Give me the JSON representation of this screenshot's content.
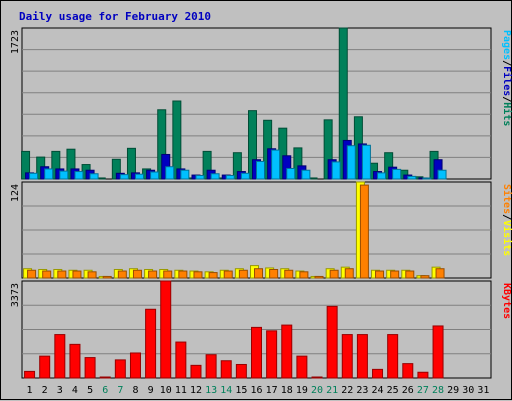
{
  "window": {
    "title": "Daily usage for February 2010"
  },
  "colors": {
    "pages": "#00c0ff",
    "files": "#0000c0",
    "hits": "#00805a",
    "sites": "#ff8000",
    "visits": "#ffff00",
    "kbytes": "#ff0000",
    "weekend_tick": "#00805a",
    "background": "#c0c0c0",
    "plot_bg": "#c0c0c0",
    "title": "#0000c0"
  },
  "chart_data": [
    {
      "type": "bar",
      "name": "hits-files-pages",
      "ymax_label": "1723",
      "ylim": [
        0,
        1723
      ],
      "grid": true,
      "ylabel_parts": [
        {
          "text": "Pages",
          "color_key": "pages"
        },
        {
          "text": "/",
          "color_key": "black"
        },
        {
          "text": "Files",
          "color_key": "files"
        },
        {
          "text": "/",
          "color_key": "black"
        },
        {
          "text": "Hits",
          "color_key": "hits"
        }
      ],
      "categories": [
        "1",
        "2",
        "3",
        "4",
        "5",
        "6",
        "7",
        "8",
        "9",
        "10",
        "11",
        "12",
        "13",
        "14",
        "15",
        "16",
        "17",
        "18",
        "19",
        "20",
        "21",
        "22",
        "23",
        "24",
        "25",
        "26",
        "27",
        "28",
        "29",
        "30",
        "31"
      ],
      "series": [
        {
          "name": "Hits",
          "color_key": "hits",
          "values": [
            315,
            250,
            315,
            340,
            165,
            12,
            225,
            350,
            115,
            790,
            890,
            12,
            315,
            12,
            300,
            780,
            670,
            580,
            355,
            12,
            675,
            1723,
            710,
            180,
            300,
            100,
            25,
            315,
            0,
            0,
            0
          ]
        },
        {
          "name": "Files",
          "color_key": "files",
          "values": [
            70,
            140,
            115,
            115,
            100,
            0,
            65,
            70,
            100,
            280,
            115,
            45,
            100,
            45,
            85,
            220,
            345,
            265,
            150,
            0,
            220,
            440,
            400,
            85,
            135,
            45,
            12,
            220,
            0,
            0,
            0
          ]
        },
        {
          "name": "Pages",
          "color_key": "pages",
          "values": [
            65,
            115,
            90,
            85,
            60,
            0,
            50,
            55,
            80,
            140,
            100,
            40,
            60,
            40,
            65,
            200,
            330,
            120,
            100,
            0,
            195,
            380,
            385,
            70,
            110,
            30,
            10,
            100,
            0,
            0,
            0
          ]
        }
      ]
    },
    {
      "type": "bar",
      "name": "visits-sites",
      "ymax_label": "124",
      "ylim": [
        0,
        124
      ],
      "grid": true,
      "ylabel_parts": [
        {
          "text": "Sites",
          "color_key": "sites"
        },
        {
          "text": "/",
          "color_key": "black"
        },
        {
          "text": "Visits",
          "color_key": "visits"
        }
      ],
      "categories": [
        "1",
        "2",
        "3",
        "4",
        "5",
        "6",
        "7",
        "8",
        "9",
        "10",
        "11",
        "12",
        "13",
        "14",
        "15",
        "16",
        "17",
        "18",
        "19",
        "20",
        "21",
        "22",
        "23",
        "24",
        "25",
        "26",
        "27",
        "28",
        "29",
        "30",
        "31"
      ],
      "series": [
        {
          "name": "Visits",
          "color_key": "visits",
          "values": [
            12,
            11,
            11,
            10,
            10,
            2,
            11,
            12,
            11,
            11,
            10,
            9,
            8,
            10,
            12,
            16,
            13,
            12,
            9,
            2,
            12,
            14,
            124,
            10,
            10,
            10,
            3,
            14,
            0,
            0,
            0
          ]
        },
        {
          "name": "Sites",
          "color_key": "sites",
          "values": [
            10,
            9,
            9,
            9,
            8,
            2,
            9,
            10,
            9,
            9,
            9,
            8,
            7,
            9,
            10,
            12,
            11,
            10,
            8,
            2,
            10,
            12,
            120,
            9,
            9,
            9,
            3,
            12,
            0,
            0,
            0
          ]
        }
      ]
    },
    {
      "type": "bar",
      "name": "kbytes",
      "ymax_label": "3373",
      "ylim": [
        0,
        3373
      ],
      "grid": true,
      "ylabel_parts": [
        {
          "text": "KBytes",
          "color_key": "kbytes"
        }
      ],
      "categories": [
        "1",
        "2",
        "3",
        "4",
        "5",
        "6",
        "7",
        "8",
        "9",
        "10",
        "11",
        "12",
        "13",
        "14",
        "15",
        "16",
        "17",
        "18",
        "19",
        "20",
        "21",
        "22",
        "23",
        "24",
        "25",
        "26",
        "27",
        "28",
        "29",
        "30",
        "31"
      ],
      "series": [
        {
          "name": "KBytes",
          "color_key": "kbytes",
          "values": [
            230,
            760,
            1510,
            1170,
            710,
            20,
            630,
            870,
            2390,
            3373,
            1250,
            440,
            810,
            600,
            470,
            1760,
            1640,
            1840,
            760,
            20,
            2490,
            1510,
            1510,
            300,
            1510,
            500,
            200,
            1810,
            0,
            0,
            0
          ]
        }
      ]
    }
  ],
  "x_axis": {
    "labels": [
      "1",
      "2",
      "3",
      "4",
      "5",
      "6",
      "7",
      "8",
      "9",
      "10",
      "11",
      "12",
      "13",
      "14",
      "15",
      "16",
      "17",
      "18",
      "19",
      "20",
      "21",
      "22",
      "23",
      "24",
      "25",
      "26",
      "27",
      "28",
      "29",
      "30",
      "31"
    ],
    "weekend_days": [
      "6",
      "7",
      "13",
      "14",
      "20",
      "21",
      "27",
      "28"
    ]
  }
}
